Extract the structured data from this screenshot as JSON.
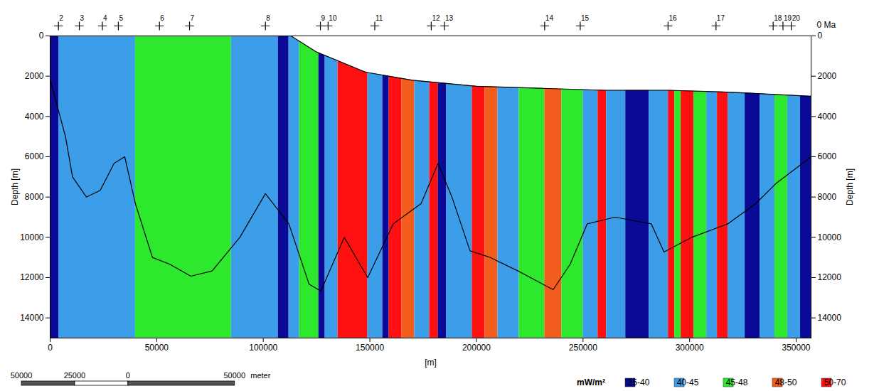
{
  "chart_data": {
    "type": "cross_section",
    "xlabel": "[m]",
    "ylabel": "Depth [m]",
    "y2label": "Depth [m]",
    "xlim": [
      0,
      357000
    ],
    "xticks": [
      0,
      50000,
      100000,
      150000,
      200000,
      250000,
      300000,
      350000
    ],
    "ylim": [
      0,
      15000
    ],
    "yticks": [
      0,
      2000,
      4000,
      6000,
      8000,
      10000,
      12000,
      14000
    ],
    "y2ticks": [
      0,
      2000,
      4000,
      6000,
      8000,
      10000,
      12000,
      14000
    ],
    "legend": "bottom-right",
    "legend_title": "mW/m²",
    "classes": [
      {
        "label": "25-40",
        "color": "#0a0a96"
      },
      {
        "label": "40-45",
        "color": "#3c9ee8"
      },
      {
        "label": "45-48",
        "color": "#2ee82e"
      },
      {
        "label": "48-50",
        "color": "#f25c1c"
      },
      {
        "label": "50-70",
        "color": "#ff1010"
      }
    ],
    "heat_flow_columns": {
      "x0": [
        0,
        4000,
        40000,
        85000,
        107000,
        112000,
        117000,
        126000,
        129000,
        135000,
        149000,
        156000,
        159000,
        165000,
        171000,
        178000,
        182000,
        186000,
        198000,
        204000,
        210000,
        220000,
        232000,
        240000,
        250000,
        257000,
        261000,
        270000,
        281000,
        290000,
        293000,
        296000,
        302000,
        308000,
        313000,
        318000,
        326000,
        333000,
        340000,
        346000,
        352000
      ],
      "x1": [
        4000,
        40000,
        85000,
        107000,
        112000,
        117000,
        126000,
        129000,
        135000,
        149000,
        156000,
        159000,
        165000,
        171000,
        178000,
        182000,
        186000,
        198000,
        204000,
        210000,
        220000,
        232000,
        240000,
        250000,
        257000,
        261000,
        270000,
        281000,
        290000,
        293000,
        296000,
        302000,
        308000,
        313000,
        318000,
        326000,
        333000,
        340000,
        346000,
        352000,
        357000
      ],
      "class": [
        "25-40",
        "40-45",
        "45-48",
        "40-45",
        "25-40",
        "40-45",
        "45-48",
        "25-40",
        "40-45",
        "50-70",
        "40-45",
        "25-40",
        "50-70",
        "48-50",
        "40-45",
        "50-70",
        "25-40",
        "40-45",
        "50-70",
        "48-50",
        "40-45",
        "45-48",
        "48-50",
        "45-48",
        "40-45",
        "50-70",
        "40-45",
        "25-40",
        "40-45",
        "50-70",
        "45-48",
        "50-70",
        "45-48",
        "40-45",
        "50-70",
        "40-45",
        "25-40",
        "40-45",
        "45-48",
        "40-45",
        "25-40"
      ]
    },
    "seafloor": {
      "x": [
        0,
        113000,
        125000,
        148000,
        170000,
        200000,
        230000,
        260000,
        290000,
        320000,
        357000
      ],
      "depth": [
        0,
        0,
        800,
        1800,
        2200,
        2500,
        2600,
        2700,
        2700,
        2800,
        3000
      ]
    },
    "basement": {
      "x": [
        0,
        7200,
        10500,
        17000,
        23500,
        30000,
        35000,
        40000,
        48000,
        56000,
        66000,
        76000,
        89000,
        101000,
        112000,
        121500,
        127000,
        138000,
        149000,
        161000,
        174000,
        182000,
        188500,
        197000,
        206500,
        219500,
        236000,
        244000,
        252000,
        265000,
        282000,
        288000,
        301000,
        318000,
        331000,
        340500,
        357000
      ],
      "depth": [
        2170,
        5000,
        7000,
        8000,
        7670,
        6330,
        6000,
        8330,
        11000,
        11330,
        11930,
        11670,
        10000,
        7830,
        9330,
        12330,
        12670,
        10000,
        12000,
        9330,
        8330,
        6330,
        8000,
        10670,
        11000,
        11670,
        12600,
        11330,
        9330,
        9000,
        9330,
        10730,
        10000,
        9330,
        8330,
        7330,
        6000
      ]
    },
    "wells": {
      "labels": [
        "2",
        "3",
        "4",
        "5",
        "6",
        "7",
        "8",
        "9",
        "10",
        "11",
        "12",
        "13",
        "14",
        "15",
        "16",
        "17",
        "18",
        "19",
        "20"
      ],
      "x": [
        3900,
        13700,
        24500,
        32000,
        51300,
        65400,
        101000,
        126800,
        130400,
        152300,
        178800,
        185000,
        232000,
        248700,
        289900,
        312400,
        339200,
        343800,
        347700
      ],
      "marker": "plus"
    },
    "annotations": [
      {
        "text": "0 Ma"
      }
    ],
    "scale_bar": {
      "ticks": [
        {
          "value": -50000,
          "label": "50000"
        },
        {
          "value": -25000,
          "label": "25000"
        },
        0,
        50000
      ],
      "unit": "meter"
    }
  }
}
